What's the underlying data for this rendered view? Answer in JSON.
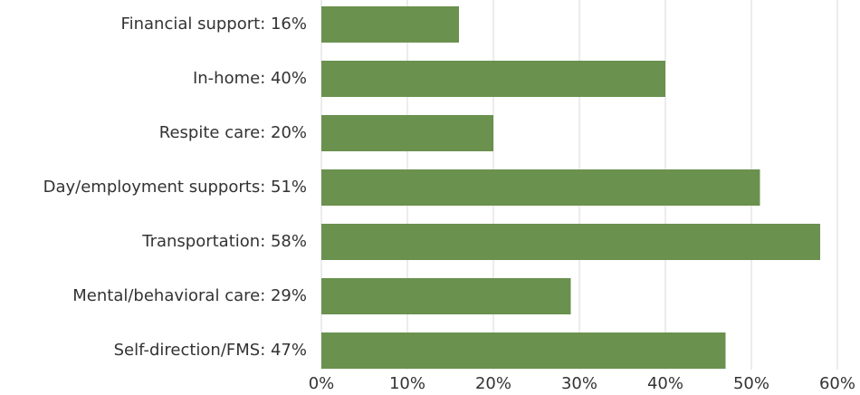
{
  "chart_data": {
    "type": "barh",
    "categories": [
      "Financial support: 16%",
      "In-home: 40%",
      "Respite care: 20%",
      "Day/employment supports: 51%",
      "Transportation: 58%",
      "Mental/behavioral care: 29%",
      "Self-direction/FMS: 47%"
    ],
    "values": [
      16,
      40,
      20,
      51,
      58,
      29,
      47
    ],
    "color": "#6a914e",
    "xlim": [
      0,
      60
    ],
    "xticks": [
      {
        "value": 0,
        "label": "0%"
      },
      {
        "value": 10,
        "label": "10%"
      },
      {
        "value": 20,
        "label": "20%"
      },
      {
        "value": 30,
        "label": "30%"
      },
      {
        "value": 40,
        "label": "40%"
      },
      {
        "value": 50,
        "label": "50%"
      },
      {
        "value": 60,
        "label": "60%"
      }
    ],
    "grid": true
  }
}
